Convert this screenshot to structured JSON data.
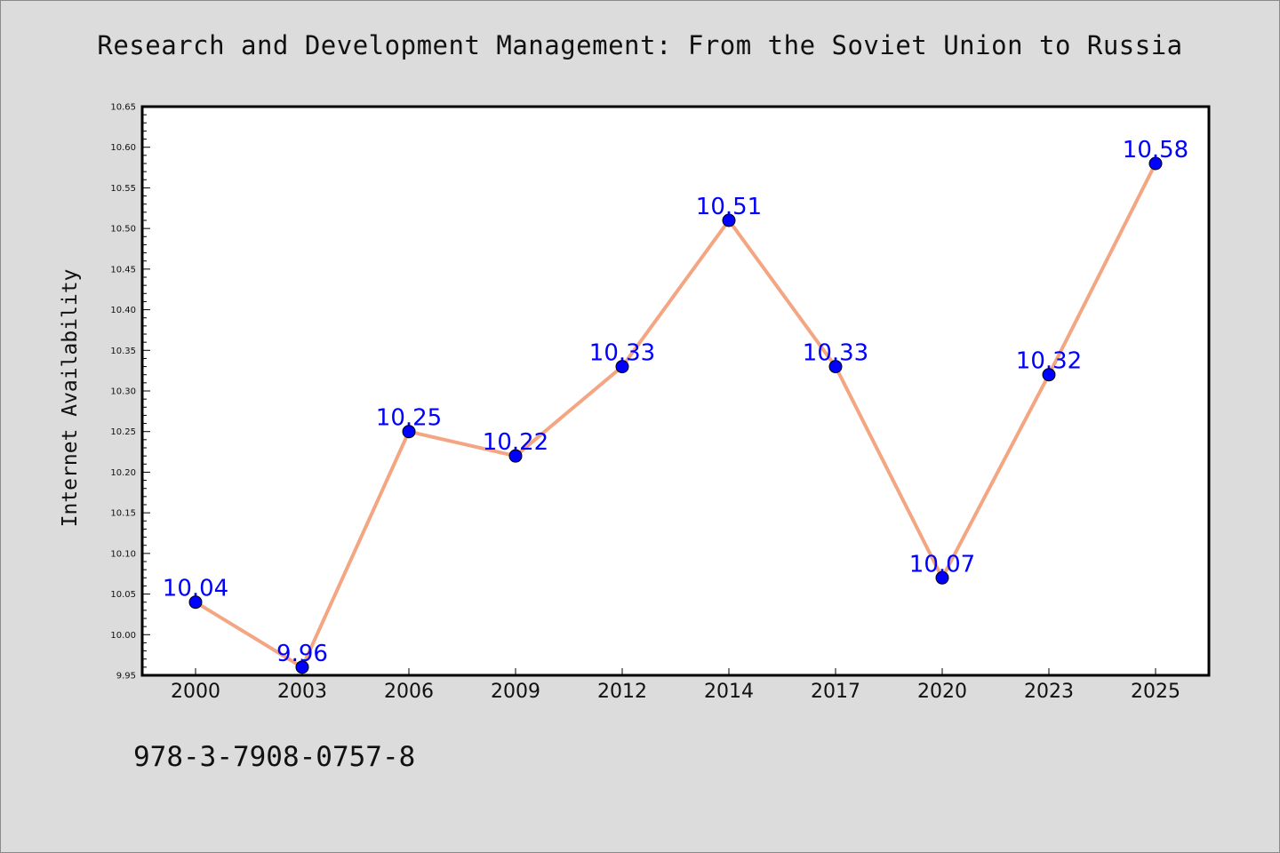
{
  "chart_data": {
    "type": "line",
    "title": "Research and Development Management: From the Soviet Union to Russia",
    "xlabel": "",
    "ylabel": "Internet Availability",
    "categories": [
      "2000",
      "2003",
      "2006",
      "2009",
      "2012",
      "2014",
      "2017",
      "2020",
      "2023",
      "2025"
    ],
    "series": [
      {
        "values": [
          10.04,
          9.96,
          10.25,
          10.22,
          10.33,
          10.51,
          10.33,
          10.07,
          10.32,
          10.58
        ],
        "labels": [
          "10.04",
          "9.96",
          "10.25",
          "10.22",
          "10.33",
          "10.51",
          "10.33",
          "10.07",
          "10.32",
          "10.58"
        ]
      }
    ],
    "ylim": [
      9.95,
      10.65
    ],
    "yticks": [
      "9.95",
      "10.00",
      "10.05",
      "10.10",
      "10.15",
      "10.20",
      "10.25",
      "10.30",
      "10.35",
      "10.40",
      "10.45",
      "10.50",
      "10.55",
      "10.60",
      "10.65"
    ],
    "grid": false,
    "legend": "none",
    "colors": {
      "line": "#f4a582",
      "marker": "#0000ff",
      "label": "#0000ff",
      "plot_background": "#ffffff",
      "page_background": "#dcdcdc"
    }
  },
  "footer": {
    "isbn": "978-3-7908-0757-8"
  }
}
